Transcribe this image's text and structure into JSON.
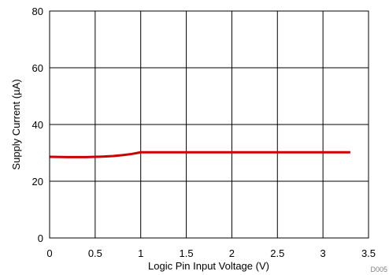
{
  "chart_data": {
    "type": "line",
    "xlabel": "Logic Pin Input Voltage (V)",
    "ylabel": "Supply Current (µA)",
    "xlim": [
      0,
      3.5
    ],
    "ylim": [
      0,
      80
    ],
    "x_ticks": [
      "0",
      "0.5",
      "1",
      "1.5",
      "2",
      "2.5",
      "3",
      "3.5"
    ],
    "y_ticks": [
      "0",
      "20",
      "40",
      "60",
      "80"
    ],
    "grid": true,
    "series": [
      {
        "color": "#cc0000",
        "x": [
          0.0,
          0.2,
          0.4,
          0.5,
          0.6,
          0.7,
          0.8,
          0.9,
          0.95,
          1.0,
          1.5,
          2.0,
          2.5,
          3.0,
          3.3
        ],
        "y": [
          28.6,
          28.5,
          28.5,
          28.6,
          28.7,
          28.9,
          29.2,
          29.6,
          29.9,
          30.2,
          30.2,
          30.2,
          30.2,
          30.2,
          30.2
        ]
      }
    ],
    "annotations": [
      "D005"
    ]
  }
}
